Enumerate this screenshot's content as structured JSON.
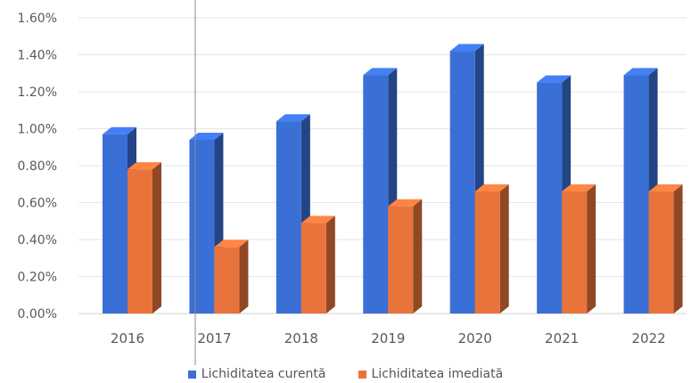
{
  "chart_data": {
    "type": "bar",
    "categories": [
      "2016",
      "2017",
      "2018",
      "2019",
      "2020",
      "2021",
      "2022"
    ],
    "series": [
      {
        "name": "Lichiditatea curentă",
        "values": [
          0.97,
          0.94,
          1.04,
          1.29,
          1.42,
          1.25,
          1.29
        ],
        "color": "#3a6fd6"
      },
      {
        "name": "Lichiditatea imediată",
        "values": [
          0.78,
          0.36,
          0.49,
          0.58,
          0.66,
          0.66,
          0.66
        ],
        "color": "#e8743b"
      }
    ],
    "yticks": [
      "0.00%",
      "0.20%",
      "0.40%",
      "0.60%",
      "0.80%",
      "1.00%",
      "1.20%",
      "1.40%",
      "1.60%"
    ],
    "ylim": [
      0,
      1.6
    ],
    "grid": true,
    "legend_position": "bottom",
    "style": "3d-columns"
  }
}
